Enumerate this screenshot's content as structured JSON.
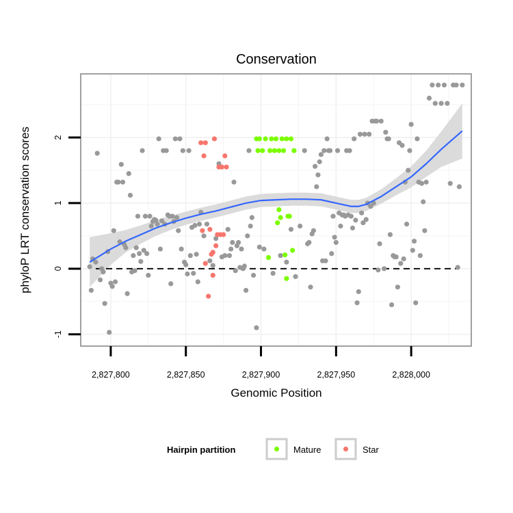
{
  "chart_data": {
    "type": "scatter",
    "title": "Conservation",
    "xlabel": "Genomic Position",
    "ylabel": "phyloP LRT conservation scores",
    "xlim": [
      2827780,
      2828040
    ],
    "ylim": [
      -1.18,
      2.97
    ],
    "x_ticks": [
      2827800,
      2827850,
      2827900,
      2827950,
      2828000
    ],
    "x_tick_labels": [
      "2,827,800",
      "2,827,850",
      "2,827,900",
      "2,827,950",
      "2,828,000"
    ],
    "y_ticks": [
      -1,
      0,
      1,
      2
    ],
    "y_tick_labels": [
      "-1",
      "0",
      "1",
      "2"
    ],
    "reference_line": {
      "y": 0,
      "style": "dashed"
    },
    "legend": {
      "title": "Hairpin partition",
      "entries": [
        {
          "label": "Mature",
          "color": "#7CFC00"
        },
        {
          "label": "Star",
          "color": "#F8766D"
        }
      ]
    },
    "colors": {
      "other": "#999999",
      "smooth_line": "#3366FF",
      "confidence_band": "#D9D9D9"
    },
    "series": [
      {
        "name": "Other",
        "color": "#999999",
        "points": [
          [
            2827786,
            0.03
          ],
          [
            2827787,
            -0.33
          ],
          [
            2827788,
            0.15
          ],
          [
            2827790,
            0.1
          ],
          [
            2827791,
            1.76
          ],
          [
            2827793,
            -0.17
          ],
          [
            2827794,
            0.0
          ],
          [
            2827795,
            -0.05
          ],
          [
            2827796,
            -0.53
          ],
          [
            2827798,
            0.26
          ],
          [
            2827799,
            -0.97
          ],
          [
            2827800,
            -0.22
          ],
          [
            2827801,
            -0.27
          ],
          [
            2827802,
            0.58
          ],
          [
            2827803,
            -0.2
          ],
          [
            2827804,
            1.32
          ],
          [
            2827805,
            1.32
          ],
          [
            2827806,
            0.41
          ],
          [
            2827807,
            1.59
          ],
          [
            2827808,
            1.32
          ],
          [
            2827809,
            0.37
          ],
          [
            2827810,
            0.32
          ],
          [
            2827811,
            -0.38
          ],
          [
            2827812,
            1.45
          ],
          [
            2827813,
            1.12
          ],
          [
            2827814,
            -0.05
          ],
          [
            2827815,
            0.2
          ],
          [
            2827816,
            -0.03
          ],
          [
            2827817,
            0.32
          ],
          [
            2827818,
            0.8
          ],
          [
            2827819,
            0.23
          ],
          [
            2827820,
            0.11
          ],
          [
            2827821,
            1.8
          ],
          [
            2827822,
            0.28
          ],
          [
            2827823,
            0.8
          ],
          [
            2827824,
            0.23
          ],
          [
            2827825,
            -0.1
          ],
          [
            2827826,
            0.8
          ],
          [
            2827827,
            0.65
          ],
          [
            2827828,
            0.72
          ],
          [
            2827829,
            0.75
          ],
          [
            2827830,
            0.74
          ],
          [
            2827831,
            0.68
          ],
          [
            2827832,
            1.98
          ],
          [
            2827833,
            0.3
          ],
          [
            2827834,
            0.73
          ],
          [
            2827835,
            1.8
          ],
          [
            2827836,
            0.68
          ],
          [
            2827837,
            1.8
          ],
          [
            2827838,
            0.82
          ],
          [
            2827839,
            0.8
          ],
          [
            2827840,
            -0.23
          ],
          [
            2827841,
            0.8
          ],
          [
            2827842,
            0.72
          ],
          [
            2827843,
            1.98
          ],
          [
            2827844,
            0.78
          ],
          [
            2827845,
            0.58
          ],
          [
            2827846,
            1.98
          ],
          [
            2827847,
            0.3
          ],
          [
            2827848,
            1.8
          ],
          [
            2827849,
            0.1
          ],
          [
            2827850,
            0.06
          ],
          [
            2827851,
            -0.08
          ],
          [
            2827852,
            1.8
          ],
          [
            2827853,
            0.2
          ],
          [
            2827854,
            0.63
          ],
          [
            2827855,
            -0.07
          ],
          [
            2827856,
            0.66
          ],
          [
            2827857,
            0.22
          ],
          [
            2827858,
            -0.2
          ],
          [
            2827859,
            0.68
          ],
          [
            2827860,
            0.86
          ],
          [
            2827862,
            0.5
          ],
          [
            2827864,
            0.68
          ],
          [
            2827866,
            0.12
          ],
          [
            2827868,
            0.05
          ],
          [
            2827870,
            0.46
          ],
          [
            2827872,
            1.6
          ],
          [
            2827874,
            0.18
          ],
          [
            2827876,
            0.2
          ],
          [
            2827878,
            0.6
          ],
          [
            2827879,
            0.2
          ],
          [
            2827880,
            0.3
          ],
          [
            2827881,
            0.4
          ],
          [
            2827882,
            1.32
          ],
          [
            2827883,
            -0.03
          ],
          [
            2827884,
            0.35
          ],
          [
            2827885,
            0.4
          ],
          [
            2827886,
            0.02
          ],
          [
            2827887,
            0.3
          ],
          [
            2827888,
            0.0
          ],
          [
            2827889,
            0.04
          ],
          [
            2827890,
            -0.33
          ],
          [
            2827891,
            0.5
          ],
          [
            2827892,
            1.8
          ],
          [
            2827893,
            0.65
          ],
          [
            2827894,
            0.78
          ],
          [
            2827895,
            -0.1
          ],
          [
            2827897,
            -0.9
          ],
          [
            2827899,
            0.33
          ],
          [
            2827902,
            0.3
          ],
          [
            2827908,
            -0.07
          ],
          [
            2827913,
            0.2
          ],
          [
            2827917,
            0.1
          ],
          [
            2827920,
            0.6
          ],
          [
            2827923,
            -0.12
          ],
          [
            2827926,
            0.65
          ],
          [
            2827929,
            1.8
          ],
          [
            2827931,
            0.38
          ],
          [
            2827932,
            0.4
          ],
          [
            2827933,
            -0.28
          ],
          [
            2827934,
            0.53
          ],
          [
            2827935,
            0.58
          ],
          [
            2827936,
            1.56
          ],
          [
            2827937,
            1.25
          ],
          [
            2827938,
            1.43
          ],
          [
            2827939,
            1.63
          ],
          [
            2827940,
            1.74
          ],
          [
            2827941,
            0.12
          ],
          [
            2827942,
            1.8
          ],
          [
            2827943,
            0.12
          ],
          [
            2827944,
            1.98
          ],
          [
            2827945,
            1.8
          ],
          [
            2827946,
            1.8
          ],
          [
            2827947,
            0.23
          ],
          [
            2827948,
            0.8
          ],
          [
            2827949,
            0.48
          ],
          [
            2827950,
            0.4
          ],
          [
            2827951,
            1.8
          ],
          [
            2827952,
            0.85
          ],
          [
            2827953,
            0.65
          ],
          [
            2827954,
            0.82
          ],
          [
            2827955,
            0.82
          ],
          [
            2827956,
            0.8
          ],
          [
            2827957,
            1.8
          ],
          [
            2827958,
            0.82
          ],
          [
            2827959,
            1.8
          ],
          [
            2827960,
            0.8
          ],
          [
            2827961,
            0.62
          ],
          [
            2827962,
            1.98
          ],
          [
            2827963,
            0.74
          ],
          [
            2827964,
            -0.52
          ],
          [
            2827965,
            -0.35
          ],
          [
            2827966,
            2.05
          ],
          [
            2827967,
            0.85
          ],
          [
            2827968,
            0.7
          ],
          [
            2827969,
            2.05
          ],
          [
            2827970,
            0.75
          ],
          [
            2827971,
            1.0
          ],
          [
            2827972,
            2.05
          ],
          [
            2827973,
            0.95
          ],
          [
            2827974,
            2.25
          ],
          [
            2827975,
            1.0
          ],
          [
            2827976,
            2.25
          ],
          [
            2827977,
            2.25
          ],
          [
            2827978,
            -0.02
          ],
          [
            2827979,
            0.38
          ],
          [
            2827980,
            2.25
          ],
          [
            2827982,
            0.0
          ],
          [
            2827983,
            2.08
          ],
          [
            2827984,
            1.98
          ],
          [
            2827985,
            1.98
          ],
          [
            2827986,
            0.52
          ],
          [
            2827987,
            -0.55
          ],
          [
            2827988,
            0.2
          ],
          [
            2827989,
            0.18
          ],
          [
            2827990,
            0.18
          ],
          [
            2827991,
            -0.28
          ],
          [
            2827992,
            1.92
          ],
          [
            2827993,
            0.08
          ],
          [
            2827994,
            1.88
          ],
          [
            2827995,
            0.15
          ],
          [
            2827996,
            1.32
          ],
          [
            2827997,
            0.68
          ],
          [
            2827998,
            1.5
          ],
          [
            2827999,
            1.8
          ],
          [
            2828000,
            2.2
          ],
          [
            2828001,
            0.28
          ],
          [
            2828002,
            0.42
          ],
          [
            2828003,
            -0.52
          ],
          [
            2828004,
            1.98
          ],
          [
            2828005,
            1.32
          ],
          [
            2828006,
            0.2
          ],
          [
            2828007,
            1.3
          ],
          [
            2828008,
            1.02
          ],
          [
            2828009,
            0.58
          ],
          [
            2828010,
            1.32
          ],
          [
            2828012,
            2.6
          ],
          [
            2828014,
            2.8
          ],
          [
            2828016,
            2.52
          ],
          [
            2828018,
            2.8
          ],
          [
            2828020,
            2.52
          ],
          [
            2828022,
            2.8
          ],
          [
            2828024,
            2.52
          ],
          [
            2828026,
            1.3
          ],
          [
            2828028,
            2.8
          ],
          [
            2828030,
            2.8
          ],
          [
            2828031,
            0.02
          ],
          [
            2828032,
            1.25
          ],
          [
            2828034,
            2.8
          ]
        ]
      },
      {
        "name": "Mature",
        "color": "#7CFC00",
        "points": [
          [
            2827897,
            1.98
          ],
          [
            2827898,
            1.8
          ],
          [
            2827899,
            1.98
          ],
          [
            2827901,
            1.8
          ],
          [
            2827903,
            1.98
          ],
          [
            2827905,
            0.17
          ],
          [
            2827906,
            1.8
          ],
          [
            2827907,
            1.98
          ],
          [
            2827909,
            1.8
          ],
          [
            2827910,
            1.98
          ],
          [
            2827911,
            0.7
          ],
          [
            2827912,
            1.8
          ],
          [
            2827913,
            0.78
          ],
          [
            2827914,
            1.98
          ],
          [
            2827915,
            1.8
          ],
          [
            2827916,
            0.21
          ],
          [
            2827917,
            1.98
          ],
          [
            2827918,
            0.8
          ],
          [
            2827919,
            0.8
          ],
          [
            2827920,
            1.98
          ],
          [
            2827921,
            0.28
          ],
          [
            2827922,
            1.8
          ],
          [
            2827917,
            -0.15
          ],
          [
            2827912,
            0.9
          ]
        ]
      },
      {
        "name": "Star",
        "color": "#F8766D",
        "points": [
          [
            2827860,
            1.92
          ],
          [
            2827861,
            0.58
          ],
          [
            2827862,
            1.72
          ],
          [
            2827863,
            1.92
          ],
          [
            2827863,
            0.08
          ],
          [
            2827865,
            -0.42
          ],
          [
            2827866,
            0.6
          ],
          [
            2827867,
            0.22
          ],
          [
            2827868,
            0.25
          ],
          [
            2827868,
            -0.1
          ],
          [
            2827869,
            1.98
          ],
          [
            2827870,
            0.35
          ],
          [
            2827871,
            0.52
          ],
          [
            2827872,
            1.55
          ],
          [
            2827873,
            0.52
          ],
          [
            2827874,
            1.55
          ],
          [
            2827875,
            0.52
          ],
          [
            2827876,
            1.72
          ],
          [
            2827877,
            1.55
          ]
        ]
      }
    ],
    "smooth_fit": {
      "x": [
        2827786,
        2827800,
        2827810,
        2827820,
        2827830,
        2827840,
        2827850,
        2827860,
        2827870,
        2827880,
        2827890,
        2827900,
        2827910,
        2827920,
        2827930,
        2827940,
        2827950,
        2827960,
        2827965,
        2827970,
        2827980,
        2827990,
        2828000,
        2828010,
        2828020,
        2828034
      ],
      "y": [
        0.1,
        0.3,
        0.42,
        0.52,
        0.62,
        0.7,
        0.77,
        0.83,
        0.88,
        0.94,
        1.0,
        1.04,
        1.05,
        1.06,
        1.06,
        1.05,
        1.0,
        0.95,
        0.95,
        0.98,
        1.1,
        1.25,
        1.4,
        1.6,
        1.82,
        2.1
      ],
      "ci_half_width": [
        0.38,
        0.24,
        0.17,
        0.14,
        0.12,
        0.11,
        0.1,
        0.1,
        0.1,
        0.1,
        0.1,
        0.1,
        0.1,
        0.1,
        0.1,
        0.1,
        0.1,
        0.1,
        0.1,
        0.1,
        0.11,
        0.13,
        0.16,
        0.2,
        0.27,
        0.42
      ]
    }
  }
}
